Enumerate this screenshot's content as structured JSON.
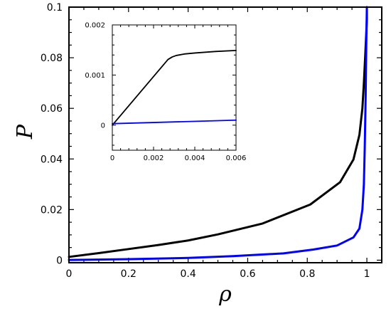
{
  "chart_data": [
    {
      "type": "line",
      "title": "",
      "xlabel": "ρ",
      "ylabel": "P",
      "xlim": [
        0,
        1.05
      ],
      "ylim": [
        -0.001,
        0.1
      ],
      "xticks": [
        0,
        0.2,
        0.4,
        0.6,
        0.8,
        1
      ],
      "xtick_labels": [
        "0",
        "0.2",
        "0.4",
        "0.6",
        "0.8",
        "1"
      ],
      "yticks": [
        0,
        0.02,
        0.04,
        0.06,
        0.08,
        0.1
      ],
      "ytick_labels": [
        "0",
        "0.02",
        "0.04",
        "0.06",
        "0.08",
        "0.1"
      ],
      "grid": false,
      "series": [
        {
          "color": "#000000",
          "x": [
            0,
            0.1,
            0.2,
            0.3,
            0.4,
            0.5,
            0.65,
            0.81,
            0.91,
            0.955,
            0.975,
            0.985,
            0.99,
            0.995,
            1.0,
            1.0
          ],
          "y": [
            0.0013,
            0.0028,
            0.0044,
            0.006,
            0.0078,
            0.0102,
            0.0145,
            0.022,
            0.0308,
            0.0398,
            0.0495,
            0.06,
            0.07,
            0.082,
            0.095,
            0.1
          ]
        },
        {
          "color": "#0000ff",
          "x": [
            0,
            0.2,
            0.4,
            0.55,
            0.72,
            0.82,
            0.9,
            0.955,
            0.975,
            0.985,
            0.99,
            0.993,
            0.996,
            0.998,
            1.0
          ],
          "y": [
            0.0001,
            0.0004,
            0.0009,
            0.0016,
            0.0027,
            0.0042,
            0.0058,
            0.009,
            0.0125,
            0.02,
            0.03,
            0.045,
            0.065,
            0.085,
            0.1
          ]
        }
      ]
    },
    {
      "type": "line",
      "title": "",
      "xlabel": "",
      "ylabel": "",
      "xlim": [
        0,
        0.006
      ],
      "ylim": [
        -0.0005,
        0.002
      ],
      "xticks": [
        0,
        0.002,
        0.004,
        0.006
      ],
      "xtick_labels": [
        "0",
        "0.002",
        "0.004",
        "0.006"
      ],
      "yticks": [
        0,
        0.001,
        0.002
      ],
      "ytick_labels": [
        "0",
        "0.001",
        "0.002"
      ],
      "grid": false,
      "series": [
        {
          "color": "#000000",
          "x": [
            0,
            0.0027,
            0.0029,
            0.0031,
            0.0035,
            0.004,
            0.005,
            0.006
          ],
          "y": [
            0,
            0.00131,
            0.00136,
            0.00139,
            0.00142,
            0.00144,
            0.00147,
            0.00149
          ]
        },
        {
          "color": "#0000ff",
          "x": [
            0,
            0.006
          ],
          "y": [
            3e-05,
            0.0001
          ]
        }
      ]
    }
  ]
}
